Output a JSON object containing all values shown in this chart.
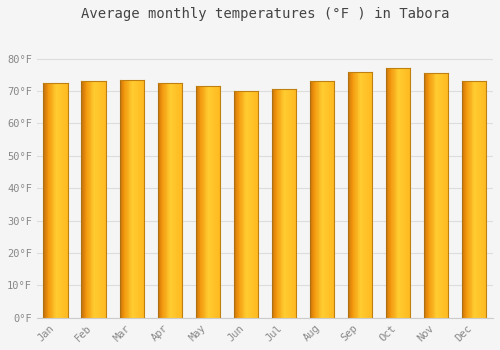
{
  "months": [
    "Jan",
    "Feb",
    "Mar",
    "Apr",
    "May",
    "Jun",
    "Jul",
    "Aug",
    "Sep",
    "Oct",
    "Nov",
    "Dec"
  ],
  "values": [
    72.5,
    73.0,
    73.5,
    72.5,
    71.5,
    70.0,
    70.5,
    73.0,
    76.0,
    77.0,
    75.5,
    73.0
  ],
  "bar_color_left": "#E8820A",
  "bar_color_mid": "#FFBB20",
  "bar_color_right": "#FFA500",
  "background_color": "#f5f5f5",
  "plot_bg_color": "#f5f5f5",
  "title": "Average monthly temperatures (°F ) in Tabora",
  "title_fontsize": 10,
  "ylim": [
    0,
    90
  ],
  "yticks": [
    0,
    10,
    20,
    30,
    40,
    50,
    60,
    70,
    80
  ],
  "ytick_labels": [
    "0°F",
    "10°F",
    "20°F",
    "30°F",
    "40°F",
    "50°F",
    "60°F",
    "70°F",
    "80°F"
  ],
  "grid_color": "#dddddd",
  "tick_label_color": "#888888",
  "title_color": "#444444"
}
